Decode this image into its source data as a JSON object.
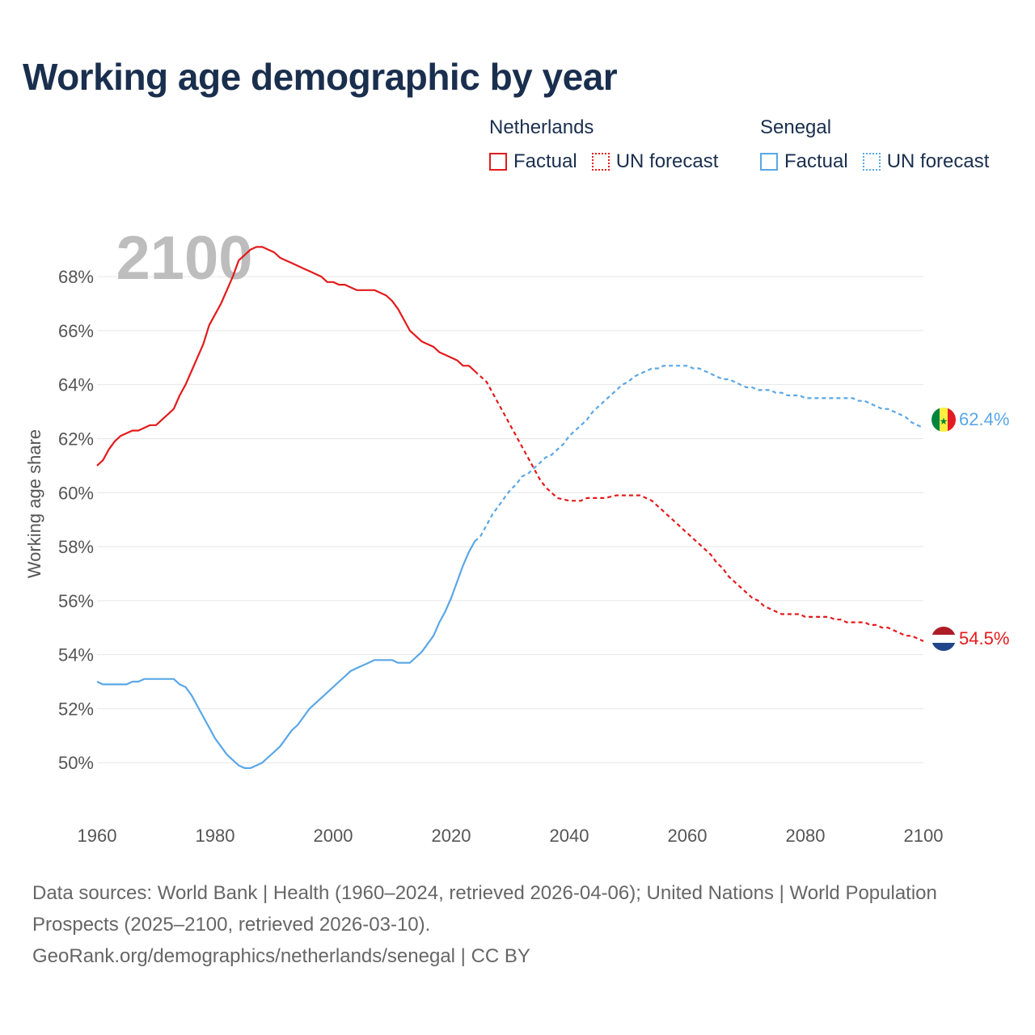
{
  "title": "Working age demographic by year",
  "legend": {
    "groups": [
      {
        "name": "Netherlands",
        "color": "#e31a1c",
        "items": [
          {
            "label": "Factual",
            "style": "solid"
          },
          {
            "label": "UN forecast",
            "style": "dotted"
          }
        ]
      },
      {
        "name": "Senegal",
        "color": "#5aa7e6",
        "items": [
          {
            "label": "Factual",
            "style": "solid"
          },
          {
            "label": "UN forecast",
            "style": "dotted"
          }
        ]
      }
    ]
  },
  "watermark_year": "2100",
  "end_labels": {
    "senegal": "62.4%",
    "netherlands": "54.5%"
  },
  "footer": {
    "line1": "Data sources: World Bank | Health (1960–2024, retrieved 2026-04-06); United Nations | World Population Prospects (2025–2100, retrieved 2026-03-10).",
    "line2": "GeoRank.org/demographics/netherlands/senegal | CC BY"
  },
  "chart_data": {
    "type": "line",
    "title": "Working age demographic by year",
    "xlabel": "",
    "ylabel": "Working age share",
    "xlim": [
      1960,
      2100
    ],
    "ylim": [
      48.3,
      69.5
    ],
    "x_ticks": [
      1960,
      1980,
      2000,
      2020,
      2040,
      2060,
      2080,
      2100
    ],
    "y_ticks": [
      50,
      52,
      54,
      56,
      58,
      60,
      62,
      64,
      66,
      68
    ],
    "y_tick_labels": [
      "50%",
      "52%",
      "54%",
      "56%",
      "58%",
      "60%",
      "62%",
      "64%",
      "66%",
      "68%"
    ],
    "grid": true,
    "factual_end_year": 2024,
    "series": [
      {
        "name": "Netherlands",
        "color": "#e31a1c",
        "points": [
          [
            1960,
            61.0
          ],
          [
            1961,
            61.2
          ],
          [
            1962,
            61.6
          ],
          [
            1963,
            61.9
          ],
          [
            1964,
            62.1
          ],
          [
            1965,
            62.2
          ],
          [
            1966,
            62.3
          ],
          [
            1967,
            62.3
          ],
          [
            1968,
            62.4
          ],
          [
            1969,
            62.5
          ],
          [
            1970,
            62.5
          ],
          [
            1971,
            62.7
          ],
          [
            1972,
            62.9
          ],
          [
            1973,
            63.1
          ],
          [
            1974,
            63.6
          ],
          [
            1975,
            64.0
          ],
          [
            1976,
            64.5
          ],
          [
            1977,
            65.0
          ],
          [
            1978,
            65.5
          ],
          [
            1979,
            66.2
          ],
          [
            1980,
            66.6
          ],
          [
            1981,
            67.0
          ],
          [
            1982,
            67.5
          ],
          [
            1983,
            68.0
          ],
          [
            1984,
            68.6
          ],
          [
            1985,
            68.8
          ],
          [
            1986,
            69.0
          ],
          [
            1987,
            69.1
          ],
          [
            1988,
            69.1
          ],
          [
            1989,
            69.0
          ],
          [
            1990,
            68.9
          ],
          [
            1991,
            68.7
          ],
          [
            1992,
            68.6
          ],
          [
            1993,
            68.5
          ],
          [
            1994,
            68.4
          ],
          [
            1995,
            68.3
          ],
          [
            1996,
            68.2
          ],
          [
            1997,
            68.1
          ],
          [
            1998,
            68.0
          ],
          [
            1999,
            67.8
          ],
          [
            2000,
            67.8
          ],
          [
            2001,
            67.7
          ],
          [
            2002,
            67.7
          ],
          [
            2003,
            67.6
          ],
          [
            2004,
            67.5
          ],
          [
            2005,
            67.5
          ],
          [
            2006,
            67.5
          ],
          [
            2007,
            67.5
          ],
          [
            2008,
            67.4
          ],
          [
            2009,
            67.3
          ],
          [
            2010,
            67.1
          ],
          [
            2011,
            66.8
          ],
          [
            2012,
            66.4
          ],
          [
            2013,
            66.0
          ],
          [
            2014,
            65.8
          ],
          [
            2015,
            65.6
          ],
          [
            2016,
            65.5
          ],
          [
            2017,
            65.4
          ],
          [
            2018,
            65.2
          ],
          [
            2019,
            65.1
          ],
          [
            2020,
            65.0
          ],
          [
            2021,
            64.9
          ],
          [
            2022,
            64.7
          ],
          [
            2023,
            64.7
          ],
          [
            2024,
            64.5
          ],
          [
            2025,
            64.3
          ],
          [
            2026,
            64.1
          ],
          [
            2027,
            63.7
          ],
          [
            2028,
            63.3
          ],
          [
            2029,
            62.9
          ],
          [
            2030,
            62.5
          ],
          [
            2031,
            62.1
          ],
          [
            2032,
            61.7
          ],
          [
            2033,
            61.3
          ],
          [
            2034,
            60.9
          ],
          [
            2035,
            60.5
          ],
          [
            2036,
            60.2
          ],
          [
            2037,
            60.0
          ],
          [
            2038,
            59.8
          ],
          [
            2039,
            59.75
          ],
          [
            2040,
            59.7
          ],
          [
            2041,
            59.7
          ],
          [
            2042,
            59.7
          ],
          [
            2043,
            59.8
          ],
          [
            2044,
            59.8
          ],
          [
            2045,
            59.8
          ],
          [
            2046,
            59.8
          ],
          [
            2047,
            59.85
          ],
          [
            2048,
            59.9
          ],
          [
            2049,
            59.9
          ],
          [
            2050,
            59.9
          ],
          [
            2051,
            59.9
          ],
          [
            2052,
            59.9
          ],
          [
            2053,
            59.8
          ],
          [
            2054,
            59.7
          ],
          [
            2055,
            59.5
          ],
          [
            2056,
            59.3
          ],
          [
            2057,
            59.1
          ],
          [
            2058,
            58.9
          ],
          [
            2059,
            58.7
          ],
          [
            2060,
            58.5
          ],
          [
            2061,
            58.3
          ],
          [
            2062,
            58.1
          ],
          [
            2063,
            57.9
          ],
          [
            2064,
            57.7
          ],
          [
            2065,
            57.4
          ],
          [
            2066,
            57.2
          ],
          [
            2067,
            56.9
          ],
          [
            2068,
            56.7
          ],
          [
            2069,
            56.5
          ],
          [
            2070,
            56.3
          ],
          [
            2071,
            56.1
          ],
          [
            2072,
            56.0
          ],
          [
            2073,
            55.8
          ],
          [
            2074,
            55.7
          ],
          [
            2075,
            55.6
          ],
          [
            2076,
            55.5
          ],
          [
            2077,
            55.5
          ],
          [
            2078,
            55.5
          ],
          [
            2079,
            55.5
          ],
          [
            2080,
            55.4
          ],
          [
            2081,
            55.4
          ],
          [
            2082,
            55.4
          ],
          [
            2083,
            55.4
          ],
          [
            2084,
            55.4
          ],
          [
            2085,
            55.3
          ],
          [
            2086,
            55.3
          ],
          [
            2087,
            55.2
          ],
          [
            2088,
            55.2
          ],
          [
            2089,
            55.2
          ],
          [
            2090,
            55.2
          ],
          [
            2091,
            55.1
          ],
          [
            2092,
            55.1
          ],
          [
            2093,
            55.0
          ],
          [
            2094,
            55.0
          ],
          [
            2095,
            54.9
          ],
          [
            2096,
            54.8
          ],
          [
            2097,
            54.7
          ],
          [
            2098,
            54.7
          ],
          [
            2099,
            54.6
          ],
          [
            2100,
            54.5
          ]
        ]
      },
      {
        "name": "Senegal",
        "color": "#5aa7e6",
        "points": [
          [
            1960,
            53.0
          ],
          [
            1961,
            52.9
          ],
          [
            1962,
            52.9
          ],
          [
            1963,
            52.9
          ],
          [
            1964,
            52.9
          ],
          [
            1965,
            52.9
          ],
          [
            1966,
            53.0
          ],
          [
            1967,
            53.0
          ],
          [
            1968,
            53.1
          ],
          [
            1969,
            53.1
          ],
          [
            1970,
            53.1
          ],
          [
            1971,
            53.1
          ],
          [
            1972,
            53.1
          ],
          [
            1973,
            53.1
          ],
          [
            1974,
            52.9
          ],
          [
            1975,
            52.8
          ],
          [
            1976,
            52.5
          ],
          [
            1977,
            52.1
          ],
          [
            1978,
            51.7
          ],
          [
            1979,
            51.3
          ],
          [
            1980,
            50.9
          ],
          [
            1981,
            50.6
          ],
          [
            1982,
            50.3
          ],
          [
            1983,
            50.1
          ],
          [
            1984,
            49.9
          ],
          [
            1985,
            49.8
          ],
          [
            1986,
            49.8
          ],
          [
            1987,
            49.9
          ],
          [
            1988,
            50.0
          ],
          [
            1989,
            50.2
          ],
          [
            1990,
            50.4
          ],
          [
            1991,
            50.6
          ],
          [
            1992,
            50.9
          ],
          [
            1993,
            51.2
          ],
          [
            1994,
            51.4
          ],
          [
            1995,
            51.7
          ],
          [
            1996,
            52.0
          ],
          [
            1997,
            52.2
          ],
          [
            1998,
            52.4
          ],
          [
            1999,
            52.6
          ],
          [
            2000,
            52.8
          ],
          [
            2001,
            53.0
          ],
          [
            2002,
            53.2
          ],
          [
            2003,
            53.4
          ],
          [
            2004,
            53.5
          ],
          [
            2005,
            53.6
          ],
          [
            2006,
            53.7
          ],
          [
            2007,
            53.8
          ],
          [
            2008,
            53.8
          ],
          [
            2009,
            53.8
          ],
          [
            2010,
            53.8
          ],
          [
            2011,
            53.7
          ],
          [
            2012,
            53.7
          ],
          [
            2013,
            53.7
          ],
          [
            2014,
            53.9
          ],
          [
            2015,
            54.1
          ],
          [
            2016,
            54.4
          ],
          [
            2017,
            54.7
          ],
          [
            2018,
            55.2
          ],
          [
            2019,
            55.6
          ],
          [
            2020,
            56.1
          ],
          [
            2021,
            56.7
          ],
          [
            2022,
            57.3
          ],
          [
            2023,
            57.8
          ],
          [
            2024,
            58.2
          ],
          [
            2025,
            58.4
          ],
          [
            2026,
            58.8
          ],
          [
            2027,
            59.2
          ],
          [
            2028,
            59.5
          ],
          [
            2029,
            59.8
          ],
          [
            2030,
            60.1
          ],
          [
            2031,
            60.3
          ],
          [
            2032,
            60.6
          ],
          [
            2033,
            60.7
          ],
          [
            2034,
            60.9
          ],
          [
            2035,
            61.1
          ],
          [
            2036,
            61.3
          ],
          [
            2037,
            61.4
          ],
          [
            2038,
            61.6
          ],
          [
            2039,
            61.8
          ],
          [
            2040,
            62.1
          ],
          [
            2041,
            62.3
          ],
          [
            2042,
            62.5
          ],
          [
            2043,
            62.7
          ],
          [
            2044,
            63.0
          ],
          [
            2045,
            63.2
          ],
          [
            2046,
            63.4
          ],
          [
            2047,
            63.6
          ],
          [
            2048,
            63.8
          ],
          [
            2049,
            64.0
          ],
          [
            2050,
            64.1
          ],
          [
            2051,
            64.3
          ],
          [
            2052,
            64.4
          ],
          [
            2053,
            64.5
          ],
          [
            2054,
            64.6
          ],
          [
            2055,
            64.6
          ],
          [
            2056,
            64.7
          ],
          [
            2057,
            64.7
          ],
          [
            2058,
            64.7
          ],
          [
            2059,
            64.7
          ],
          [
            2060,
            64.7
          ],
          [
            2061,
            64.6
          ],
          [
            2062,
            64.6
          ],
          [
            2063,
            64.5
          ],
          [
            2064,
            64.4
          ],
          [
            2065,
            64.3
          ],
          [
            2066,
            64.2
          ],
          [
            2067,
            64.2
          ],
          [
            2068,
            64.1
          ],
          [
            2069,
            64.0
          ],
          [
            2070,
            63.9
          ],
          [
            2071,
            63.9
          ],
          [
            2072,
            63.8
          ],
          [
            2073,
            63.8
          ],
          [
            2074,
            63.8
          ],
          [
            2075,
            63.7
          ],
          [
            2076,
            63.7
          ],
          [
            2077,
            63.6
          ],
          [
            2078,
            63.6
          ],
          [
            2079,
            63.6
          ],
          [
            2080,
            63.5
          ],
          [
            2081,
            63.5
          ],
          [
            2082,
            63.5
          ],
          [
            2083,
            63.5
          ],
          [
            2084,
            63.5
          ],
          [
            2085,
            63.5
          ],
          [
            2086,
            63.5
          ],
          [
            2087,
            63.5
          ],
          [
            2088,
            63.5
          ],
          [
            2089,
            63.4
          ],
          [
            2090,
            63.4
          ],
          [
            2091,
            63.3
          ],
          [
            2092,
            63.2
          ],
          [
            2093,
            63.1
          ],
          [
            2094,
            63.1
          ],
          [
            2095,
            63.0
          ],
          [
            2096,
            62.9
          ],
          [
            2097,
            62.8
          ],
          [
            2098,
            62.6
          ],
          [
            2099,
            62.5
          ],
          [
            2100,
            62.4
          ]
        ]
      }
    ]
  }
}
